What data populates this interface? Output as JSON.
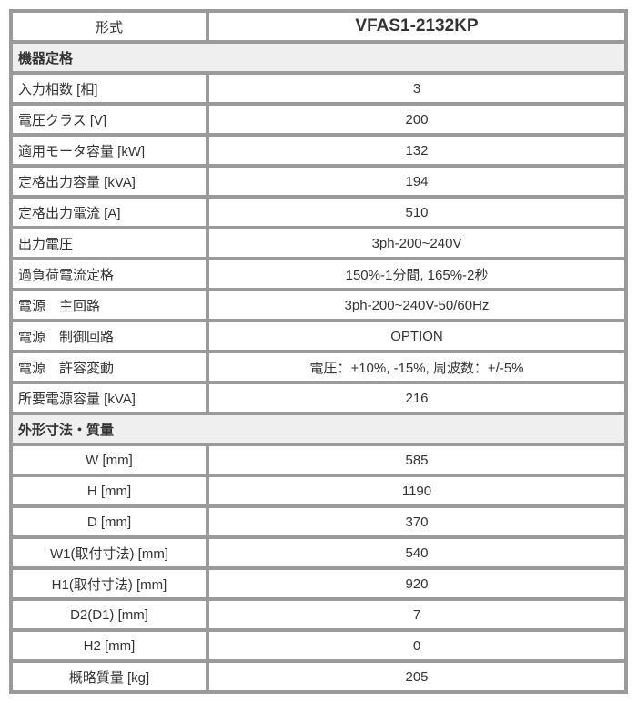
{
  "header": {
    "label": "形式",
    "value": "VFAS1-2132KP"
  },
  "section1": {
    "title": "機器定格",
    "rows": [
      {
        "label": "入力相数 [相]",
        "value": "3"
      },
      {
        "label": "電圧クラス [V]",
        "value": "200"
      },
      {
        "label": "適用モータ容量 [kW]",
        "value": "132"
      },
      {
        "label": "定格出力容量 [kVA]",
        "value": "194"
      },
      {
        "label": "定格出力電流 [A]",
        "value": "510"
      },
      {
        "label": "出力電圧",
        "value": "3ph-200~240V"
      },
      {
        "label": "過負荷電流定格",
        "value": "150%-1分間, 165%-2秒"
      },
      {
        "label": "電源　主回路",
        "value": "3ph-200~240V-50/60Hz"
      },
      {
        "label": "電源　制御回路",
        "value": "OPTION"
      },
      {
        "label": "電源　許容変動",
        "value": "電圧：+10%, -15%, 周波数：+/-5%"
      },
      {
        "label": "所要電源容量 [kVA]",
        "value": "216"
      }
    ]
  },
  "section2": {
    "title": "外形寸法・質量",
    "rows": [
      {
        "label": "W [mm]",
        "value": "585"
      },
      {
        "label": "H [mm]",
        "value": "1190"
      },
      {
        "label": "D [mm]",
        "value": "370"
      },
      {
        "label": "W1(取付寸法) [mm]",
        "value": "540"
      },
      {
        "label": "H1(取付寸法) [mm]",
        "value": "920"
      },
      {
        "label": "D2(D1) [mm]",
        "value": "7"
      },
      {
        "label": "H2 [mm]",
        "value": "0"
      },
      {
        "label": "概略質量 [kg]",
        "value": "205"
      }
    ]
  }
}
